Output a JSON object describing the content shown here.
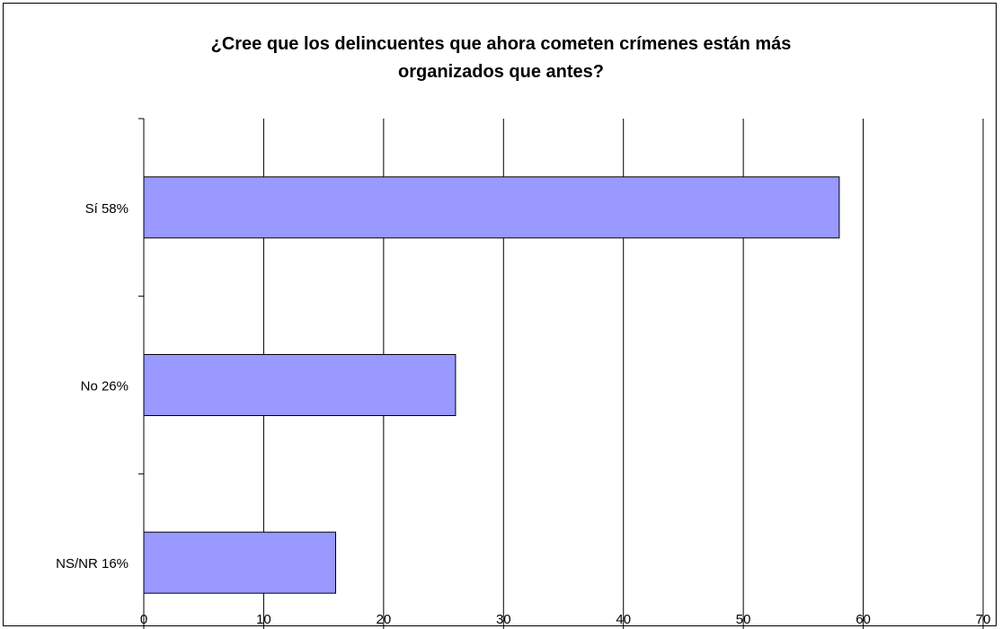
{
  "chart_data": {
    "type": "bar",
    "orientation": "horizontal",
    "title_lines": [
      "¿Cree que los delincuentes que ahora cometen crímenes están más",
      "organizados que antes?"
    ],
    "xlabel": "",
    "ylabel": "",
    "categories": [
      "Sí  58%",
      "No  26%",
      "NS/NR  16%"
    ],
    "values": [
      58,
      26,
      16
    ],
    "xlim": [
      0,
      70
    ],
    "xticks": [
      0,
      10,
      20,
      30,
      40,
      50,
      60,
      70
    ],
    "grid": "vertical",
    "legend": "none",
    "colors": {
      "bar_fill": "#9999ff",
      "bar_stroke": "#000000",
      "grid": "#000000",
      "background": "#ffffff"
    }
  }
}
